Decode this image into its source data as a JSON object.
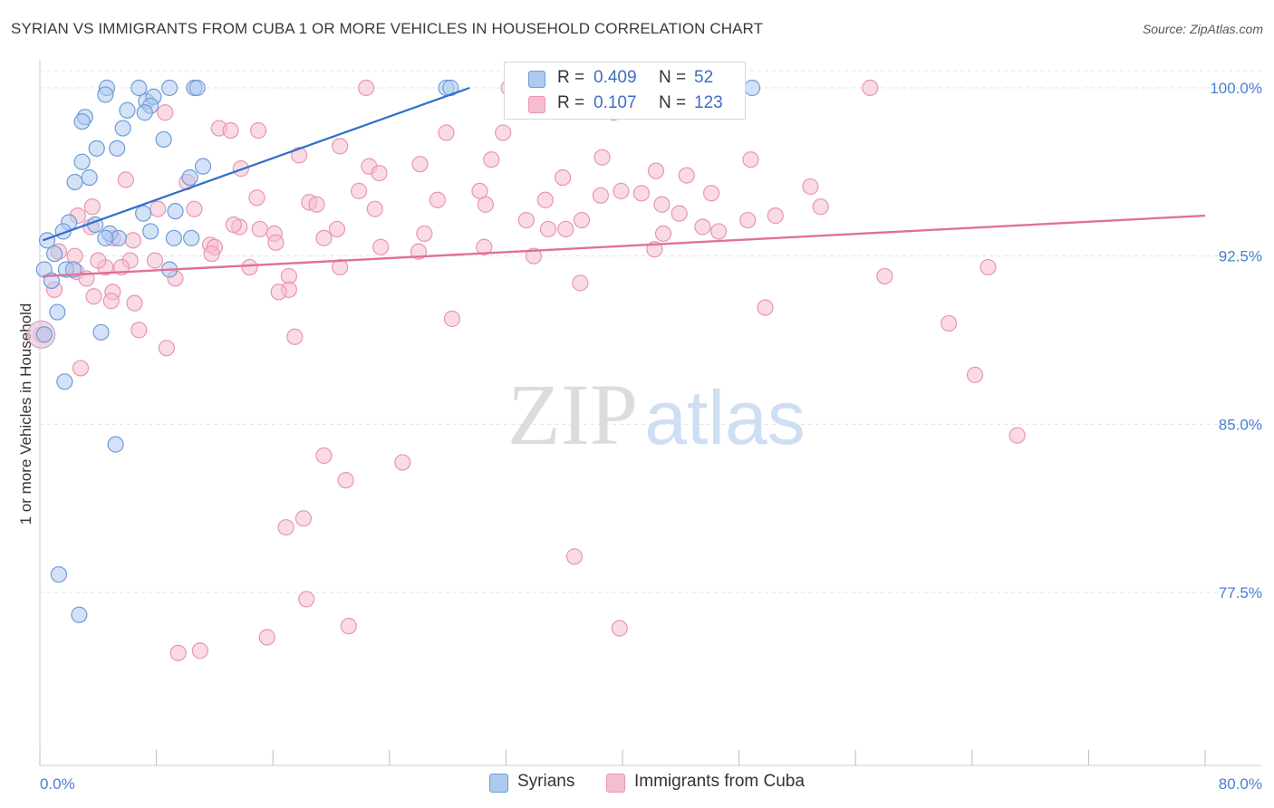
{
  "title": "SYRIAN VS IMMIGRANTS FROM CUBA 1 OR MORE VEHICLES IN HOUSEHOLD CORRELATION CHART",
  "source": "Source: ZipAtlas.com",
  "watermark": {
    "zip": "ZIP",
    "atlas": "atlas"
  },
  "colors": {
    "blue_fill": "#aecbef",
    "blue_stroke": "#6f9bd8",
    "blue_line": "#2f6fcf",
    "pink_fill": "#f5bed0",
    "pink_stroke": "#e895b1",
    "pink_line": "#e0709a",
    "tick_label": "#4a7fd0",
    "grid": "#e3e3e3"
  },
  "legend": {
    "rows": [
      {
        "r_label": "R =",
        "r_value": "0.409",
        "n_label": "N =",
        "n_value": "52"
      },
      {
        "r_label": "R =",
        "r_value": "0.107",
        "n_label": "N =",
        "n_value": "123"
      }
    ]
  },
  "bottom_legend": {
    "syrians": "Syrians",
    "cuba": "Immigrants from Cuba"
  },
  "chart_data": {
    "type": "scatter",
    "title": "SYRIAN VS IMMIGRANTS FROM CUBA 1 OR MORE VEHICLES IN HOUSEHOLD CORRELATION CHART",
    "xlabel": "",
    "ylabel": "1 or more Vehicles in Household",
    "xlim": [
      0,
      80
    ],
    "ylim": [
      70,
      100.8
    ],
    "x_tick_labels": {
      "left": "0.0%",
      "right": "80.0%"
    },
    "y_ticks": [
      100.0,
      92.5,
      85.0,
      77.5
    ],
    "y_tick_labels": [
      "100.0%",
      "92.5%",
      "85.0%",
      "77.5%"
    ],
    "series": [
      {
        "name": "Syrians",
        "r": 0.409,
        "n": 52,
        "trend": {
          "x": [
            0.2,
            29.5
          ],
          "y": [
            93.2,
            100.0
          ]
        },
        "points": [
          [
            4.6,
            100.0
          ],
          [
            6.8,
            100.0
          ],
          [
            8.9,
            100.0
          ],
          [
            10.6,
            100.0
          ],
          [
            10.8,
            100.0
          ],
          [
            27.9,
            100.0
          ],
          [
            28.2,
            100.0
          ],
          [
            48.9,
            100.0
          ],
          [
            4.5,
            99.7
          ],
          [
            7.3,
            99.4
          ],
          [
            7.8,
            99.6
          ],
          [
            6.0,
            99.0
          ],
          [
            7.6,
            99.2
          ],
          [
            7.2,
            98.9
          ],
          [
            3.1,
            98.7
          ],
          [
            2.9,
            98.5
          ],
          [
            5.7,
            98.2
          ],
          [
            8.5,
            97.7
          ],
          [
            3.9,
            97.3
          ],
          [
            5.3,
            97.3
          ],
          [
            2.9,
            96.7
          ],
          [
            11.2,
            96.5
          ],
          [
            3.4,
            96.0
          ],
          [
            10.3,
            96.0
          ],
          [
            2.4,
            95.8
          ],
          [
            9.3,
            94.5
          ],
          [
            7.1,
            94.4
          ],
          [
            2.0,
            94.0
          ],
          [
            3.8,
            93.9
          ],
          [
            1.6,
            93.6
          ],
          [
            4.8,
            93.5
          ],
          [
            5.4,
            93.3
          ],
          [
            4.5,
            93.3
          ],
          [
            7.6,
            93.6
          ],
          [
            9.2,
            93.3
          ],
          [
            10.4,
            93.3
          ],
          [
            0.5,
            93.2
          ],
          [
            1.0,
            92.6
          ],
          [
            0.3,
            91.9
          ],
          [
            1.8,
            91.9
          ],
          [
            2.3,
            91.9
          ],
          [
            8.9,
            91.9
          ],
          [
            0.8,
            91.4
          ],
          [
            1.2,
            90.0
          ],
          [
            4.2,
            89.1
          ],
          [
            0.3,
            89.0
          ],
          [
            1.7,
            86.9
          ],
          [
            5.2,
            84.1
          ],
          [
            1.3,
            78.3
          ],
          [
            2.7,
            76.5
          ]
        ]
      },
      {
        "name": "Immigrants from Cuba",
        "r": 0.107,
        "n": 123,
        "trend": {
          "x": [
            0.2,
            80.0
          ],
          "y": [
            91.6,
            94.3
          ]
        },
        "points": [
          [
            22.4,
            100.0
          ],
          [
            32.2,
            100.0
          ],
          [
            38.4,
            100.0
          ],
          [
            57.0,
            100.0
          ],
          [
            8.6,
            98.9
          ],
          [
            39.4,
            98.9
          ],
          [
            12.3,
            98.2
          ],
          [
            13.1,
            98.1
          ],
          [
            15.0,
            98.1
          ],
          [
            27.9,
            98.0
          ],
          [
            31.8,
            98.0
          ],
          [
            20.6,
            97.4
          ],
          [
            17.8,
            97.0
          ],
          [
            38.6,
            96.9
          ],
          [
            48.8,
            96.8
          ],
          [
            26.1,
            96.6
          ],
          [
            31.0,
            96.8
          ],
          [
            13.8,
            96.4
          ],
          [
            22.6,
            96.5
          ],
          [
            42.3,
            96.3
          ],
          [
            44.4,
            96.1
          ],
          [
            23.3,
            96.2
          ],
          [
            35.9,
            96.0
          ],
          [
            5.9,
            95.9
          ],
          [
            10.1,
            95.8
          ],
          [
            52.9,
            95.6
          ],
          [
            21.9,
            95.4
          ],
          [
            30.2,
            95.4
          ],
          [
            39.9,
            95.4
          ],
          [
            14.9,
            95.1
          ],
          [
            27.3,
            95.0
          ],
          [
            34.7,
            95.0
          ],
          [
            38.5,
            95.2
          ],
          [
            41.3,
            95.3
          ],
          [
            46.1,
            95.3
          ],
          [
            18.5,
            94.9
          ],
          [
            19.0,
            94.8
          ],
          [
            23.0,
            94.6
          ],
          [
            30.6,
            94.8
          ],
          [
            42.7,
            94.8
          ],
          [
            3.6,
            94.7
          ],
          [
            8.1,
            94.6
          ],
          [
            10.6,
            94.6
          ],
          [
            53.6,
            94.7
          ],
          [
            43.9,
            94.4
          ],
          [
            48.6,
            94.1
          ],
          [
            2.6,
            94.3
          ],
          [
            33.4,
            94.1
          ],
          [
            37.2,
            94.1
          ],
          [
            50.5,
            94.3
          ],
          [
            3.5,
            93.8
          ],
          [
            13.7,
            93.8
          ],
          [
            15.1,
            93.7
          ],
          [
            16.1,
            93.5
          ],
          [
            20.4,
            93.7
          ],
          [
            36.1,
            93.7
          ],
          [
            34.9,
            93.7
          ],
          [
            45.5,
            93.8
          ],
          [
            5.0,
            93.3
          ],
          [
            11.7,
            93.0
          ],
          [
            16.2,
            93.1
          ],
          [
            19.5,
            93.3
          ],
          [
            23.4,
            92.9
          ],
          [
            26.4,
            93.5
          ],
          [
            30.5,
            92.9
          ],
          [
            42.8,
            93.5
          ],
          [
            46.6,
            93.6
          ],
          [
            6.4,
            93.2
          ],
          [
            1.3,
            92.7
          ],
          [
            2.4,
            92.5
          ],
          [
            6.2,
            92.3
          ],
          [
            7.9,
            92.3
          ],
          [
            12.0,
            92.9
          ],
          [
            11.8,
            92.6
          ],
          [
            26.0,
            92.7
          ],
          [
            33.9,
            92.5
          ],
          [
            42.2,
            92.8
          ],
          [
            4.5,
            92.0
          ],
          [
            5.6,
            92.0
          ],
          [
            14.4,
            92.0
          ],
          [
            20.6,
            92.0
          ],
          [
            65.1,
            92.0
          ],
          [
            2.5,
            91.8
          ],
          [
            3.2,
            91.5
          ],
          [
            9.3,
            91.5
          ],
          [
            17.1,
            91.6
          ],
          [
            17.1,
            91.0
          ],
          [
            37.1,
            91.3
          ],
          [
            58.0,
            91.6
          ],
          [
            1.0,
            91.0
          ],
          [
            5.0,
            90.9
          ],
          [
            16.4,
            90.9
          ],
          [
            3.7,
            90.7
          ],
          [
            4.9,
            90.5
          ],
          [
            6.5,
            90.4
          ],
          [
            49.8,
            90.2
          ],
          [
            28.3,
            89.7
          ],
          [
            62.4,
            89.5
          ],
          [
            6.8,
            89.2
          ],
          [
            17.5,
            88.9
          ],
          [
            8.7,
            88.4
          ],
          [
            2.8,
            87.5
          ],
          [
            64.2,
            87.2
          ],
          [
            67.1,
            84.5
          ],
          [
            19.5,
            83.6
          ],
          [
            24.9,
            83.3
          ],
          [
            21.0,
            82.5
          ],
          [
            18.1,
            80.8
          ],
          [
            16.9,
            80.4
          ],
          [
            36.7,
            79.1
          ],
          [
            18.3,
            77.2
          ],
          [
            21.2,
            76.0
          ],
          [
            39.8,
            75.9
          ],
          [
            15.6,
            75.5
          ],
          [
            11.0,
            74.9
          ],
          [
            9.5,
            74.8
          ],
          [
            0.1,
            89.0
          ],
          [
            4.0,
            92.3
          ],
          [
            13.3,
            93.9
          ]
        ]
      }
    ]
  }
}
